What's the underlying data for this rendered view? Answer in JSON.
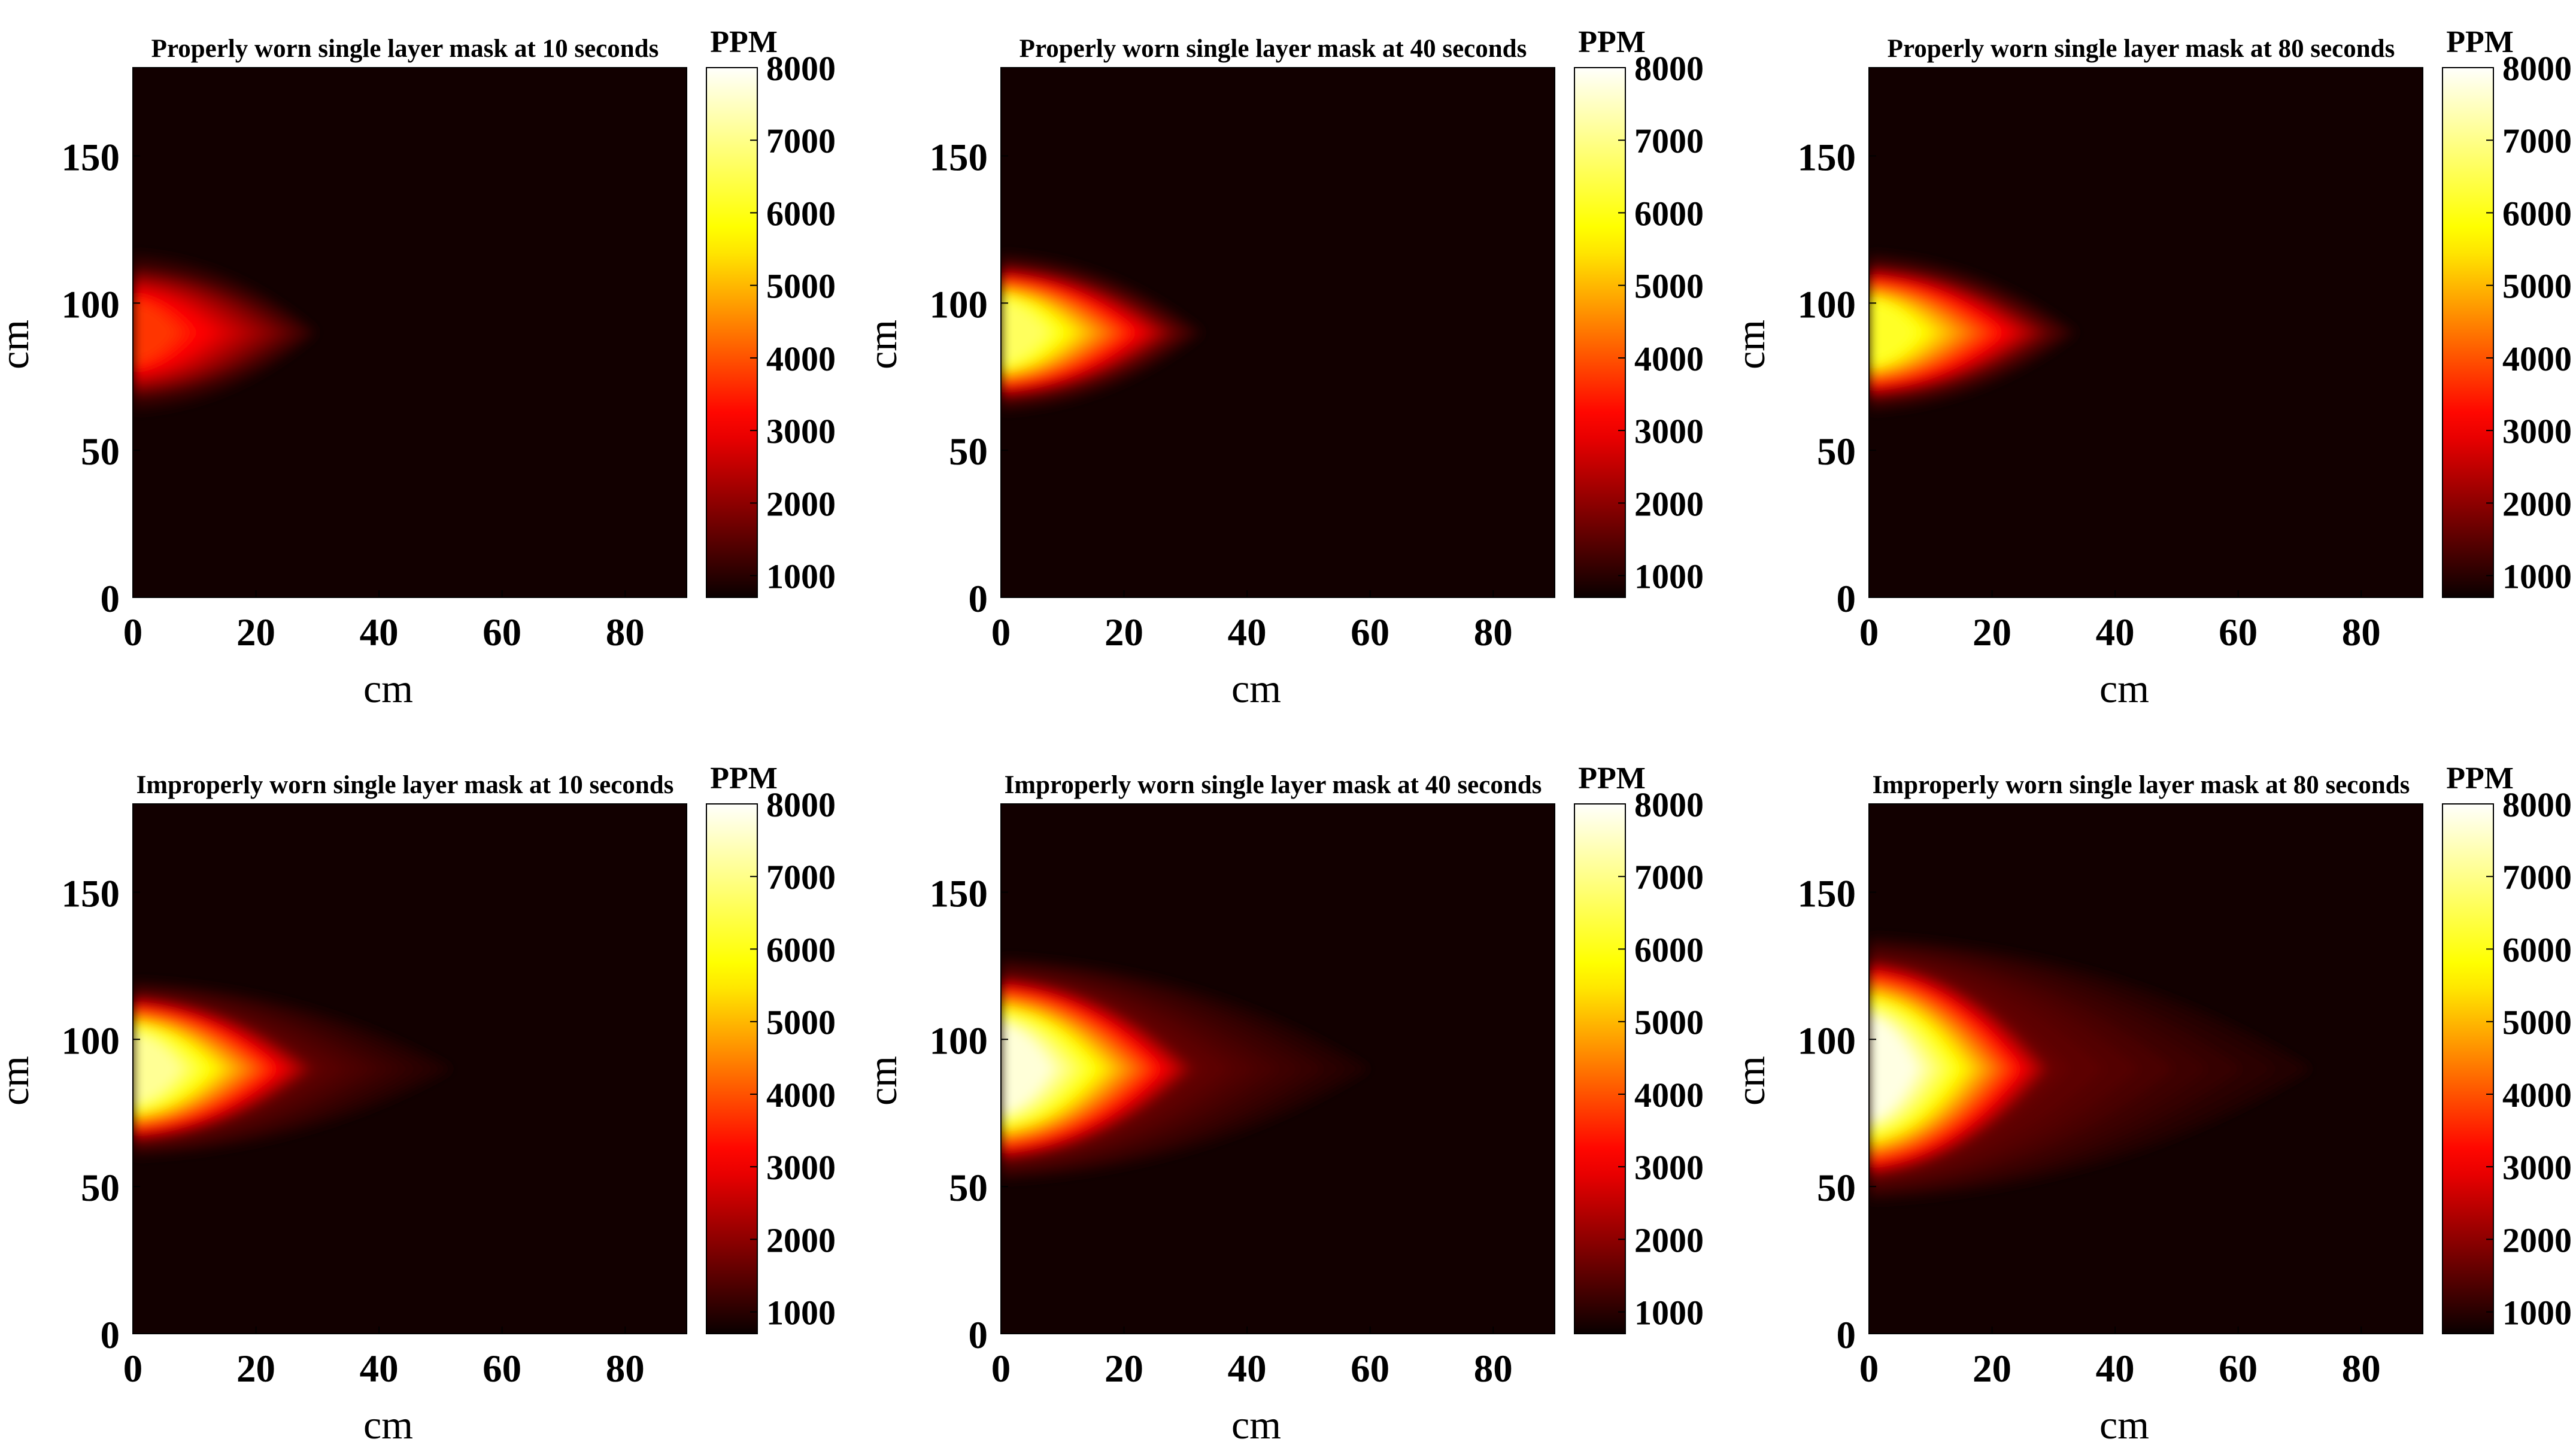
{
  "colormap": "hot",
  "colors": {
    "background": "#ffffff",
    "colormap_stops": [
      "#0b0000",
      "#2b0000",
      "#7a0000",
      "#c80000",
      "#ff1e00",
      "#ff6a00",
      "#ffaa00",
      "#ffe000",
      "#ffff64",
      "#ffffff"
    ]
  },
  "chart_data": [
    {
      "type": "heatmap",
      "title": "Properly worn single layer mask at 10 seconds",
      "xlabel": "cm",
      "ylabel": "cm",
      "xlim": [
        0,
        90
      ],
      "ylim": [
        0,
        180
      ],
      "xticks": [
        "0",
        "20",
        "40",
        "60",
        "80"
      ],
      "yticks": [
        "0",
        "50",
        "100",
        "150"
      ],
      "colorbar": {
        "title": "PPM",
        "range": [
          700,
          8000
        ],
        "ticks": [
          "1000",
          "2000",
          "3000",
          "4000",
          "5000",
          "6000",
          "7000",
          "8000"
        ]
      },
      "plume": {
        "source_y": 90,
        "peak_ppm": 3800,
        "core_reach_x": 28,
        "faint_reach_x": 30,
        "half_height_y": 27
      }
    },
    {
      "type": "heatmap",
      "title": "Properly worn single layer mask at 40 seconds",
      "xlabel": "cm",
      "ylabel": "cm",
      "xlim": [
        0,
        90
      ],
      "ylim": [
        0,
        180
      ],
      "xticks": [
        "0",
        "20",
        "40",
        "60",
        "80"
      ],
      "yticks": [
        "0",
        "50",
        "100",
        "150"
      ],
      "colorbar": {
        "title": "PPM",
        "range": [
          700,
          8000
        ],
        "ticks": [
          "1000",
          "2000",
          "3000",
          "4000",
          "5000",
          "6000",
          "7000",
          "8000"
        ]
      },
      "plume": {
        "source_y": 90,
        "peak_ppm": 6800,
        "core_reach_x": 29,
        "faint_reach_x": 33,
        "half_height_y": 27
      }
    },
    {
      "type": "heatmap",
      "title": "Properly worn single layer mask at 80 seconds",
      "xlabel": "cm",
      "ylabel": "cm",
      "xlim": [
        0,
        90
      ],
      "ylim": [
        0,
        180
      ],
      "xticks": [
        "0",
        "20",
        "40",
        "60",
        "80"
      ],
      "yticks": [
        "0",
        "50",
        "100",
        "150"
      ],
      "colorbar": {
        "title": "PPM",
        "range": [
          700,
          8000
        ],
        "ticks": [
          "1000",
          "2000",
          "3000",
          "4000",
          "5000",
          "6000",
          "7000",
          "8000"
        ]
      },
      "plume": {
        "source_y": 90,
        "peak_ppm": 6300,
        "core_reach_x": 30,
        "faint_reach_x": 34,
        "half_height_y": 27
      }
    },
    {
      "type": "heatmap",
      "title": "Improperly worn single layer mask at 10 seconds",
      "xlabel": "cm",
      "ylabel": "cm",
      "xlim": [
        0,
        90
      ],
      "ylim": [
        0,
        180
      ],
      "xticks": [
        "0",
        "20",
        "40",
        "60",
        "80"
      ],
      "yticks": [
        "0",
        "50",
        "100",
        "150"
      ],
      "colorbar": {
        "title": "PPM",
        "range": [
          700,
          8000
        ],
        "ticks": [
          "1000",
          "2000",
          "3000",
          "4000",
          "5000",
          "6000",
          "7000",
          "8000"
        ]
      },
      "plume": {
        "source_y": 90,
        "peak_ppm": 7300,
        "core_reach_x": 30,
        "faint_reach_x": 52,
        "half_height_y": 30
      }
    },
    {
      "type": "heatmap",
      "title": "Improperly worn single layer mask at 40 seconds",
      "xlabel": "cm",
      "ylabel": "cm",
      "xlim": [
        0,
        90
      ],
      "ylim": [
        0,
        180
      ],
      "xticks": [
        "0",
        "20",
        "40",
        "60",
        "80"
      ],
      "yticks": [
        "0",
        "50",
        "100",
        "150"
      ],
      "colorbar": {
        "title": "PPM",
        "range": [
          700,
          8000
        ],
        "ticks": [
          "1000",
          "2000",
          "3000",
          "4000",
          "5000",
          "6000",
          "7000",
          "8000"
        ]
      },
      "plume": {
        "source_y": 90,
        "peak_ppm": 7900,
        "core_reach_x": 32,
        "faint_reach_x": 60,
        "half_height_y": 38
      }
    },
    {
      "type": "heatmap",
      "title": "Improperly worn single layer mask at 80 seconds",
      "xlabel": "cm",
      "ylabel": "cm",
      "xlim": [
        0,
        90
      ],
      "ylim": [
        0,
        180
      ],
      "xticks": [
        "0",
        "20",
        "40",
        "60",
        "80"
      ],
      "yticks": [
        "0",
        "50",
        "100",
        "150"
      ],
      "colorbar": {
        "title": "PPM",
        "range": [
          700,
          8000
        ],
        "ticks": [
          "1000",
          "2000",
          "3000",
          "4000",
          "5000",
          "6000",
          "7000",
          "8000"
        ]
      },
      "plume": {
        "source_y": 90,
        "peak_ppm": 9000,
        "core_reach_x": 30,
        "faint_reach_x": 72,
        "half_height_y": 45
      }
    }
  ]
}
